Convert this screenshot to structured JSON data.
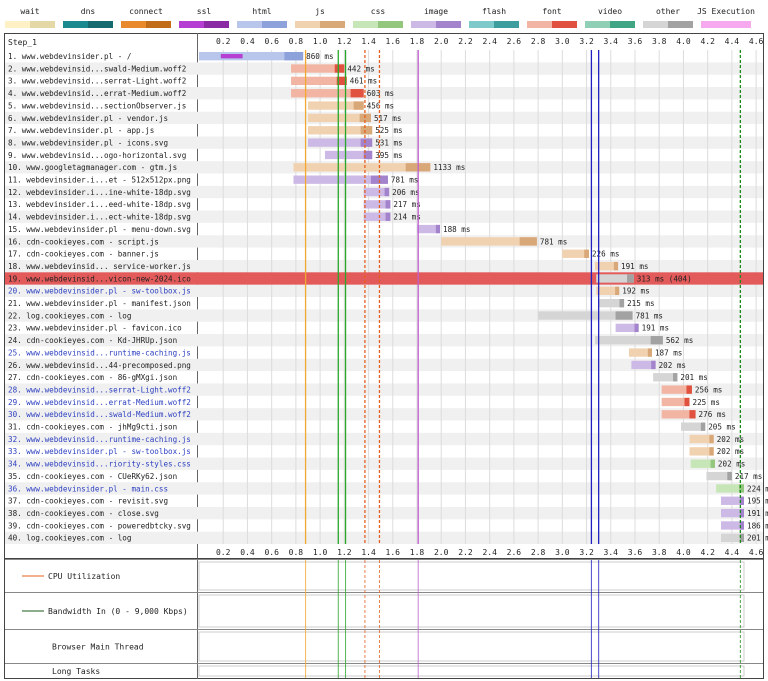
{
  "legend": [
    {
      "label": "wait",
      "color": "#fff1c6",
      "dark": "#e4d9a6"
    },
    {
      "label": "dns",
      "color": "#1b8a8f",
      "dark": "#146a6e"
    },
    {
      "label": "connect",
      "color": "#e88a2b",
      "dark": "#c06c18"
    },
    {
      "label": "ssl",
      "color": "#b43fd2",
      "dark": "#8b2ba3"
    },
    {
      "label": "html",
      "color": "#b8c6ec",
      "dark": "#8da2db"
    },
    {
      "label": "js",
      "color": "#f1d2b0",
      "dark": "#d9a878"
    },
    {
      "label": "css",
      "color": "#c7e6b7",
      "dark": "#93c77d"
    },
    {
      "label": "image",
      "color": "#cdb9e6",
      "dark": "#a283cc"
    },
    {
      "label": "flash",
      "color": "#7ec9c9",
      "dark": "#3e9e9e"
    },
    {
      "label": "font",
      "color": "#f2b5a4",
      "dark": "#e0523f"
    },
    {
      "label": "video",
      "color": "#8ecfb6",
      "dark": "#3fa585"
    },
    {
      "label": "other",
      "color": "#d5d5d5",
      "dark": "#a2a2a2"
    },
    {
      "label": "JS Execution",
      "color": "#f6a9ef",
      "dark": "#f6a9ef"
    }
  ],
  "step_label": "Step_1",
  "chart_data": {
    "type": "waterfall",
    "x_range": [
      0,
      4.5
    ],
    "x_ticks": [
      "0.2",
      "0.4",
      "0.6",
      "0.8",
      "1.0",
      "1.2",
      "1.4",
      "1.6",
      "1.8",
      "2.0",
      "2.2",
      "2.4",
      "2.6",
      "2.8",
      "3.0",
      "3.2",
      "3.4",
      "3.6",
      "3.8",
      "4.0",
      "4.2",
      "4.4",
      "4.6",
      "4."
    ],
    "requests": [
      {
        "label": "1. www.webdevinsider.pl - /",
        "start": 0.0,
        "end": 0.86,
        "type": "html",
        "duration": "860 ms",
        "dns": [
          0.0,
          0.0
        ],
        "connect": [
          0.0,
          0.0
        ],
        "ssl": [
          0.18,
          0.36
        ],
        "flag": ""
      },
      {
        "label": "2. www.webdevinsid...swald-Medium.woff2",
        "start": 0.76,
        "end": 1.2,
        "type": "font",
        "duration": "442 ms",
        "flag": ""
      },
      {
        "label": "3. www.webdevinsid...serrat-Light.woff2",
        "start": 0.76,
        "end": 1.22,
        "type": "font",
        "duration": "461 ms",
        "flag": ""
      },
      {
        "label": "4. www.webdevinsid...errat-Medium.woff2",
        "start": 0.76,
        "end": 1.36,
        "type": "font",
        "duration": "603 ms",
        "flag": ""
      },
      {
        "label": "5. www.webdevinsid...sectionObserver.js",
        "start": 0.9,
        "end": 1.36,
        "type": "js",
        "duration": "456 ms",
        "flag": ""
      },
      {
        "label": "6. www.webdevinsider.pl - vendor.js",
        "start": 0.9,
        "end": 1.42,
        "type": "js",
        "duration": "517 ms",
        "flag": ""
      },
      {
        "label": "7. www.webdevinsider.pl - app.js",
        "start": 0.9,
        "end": 1.43,
        "type": "js",
        "duration": "525 ms",
        "flag": ""
      },
      {
        "label": "8. www.webdevinsider.pl - icons.svg",
        "start": 0.9,
        "end": 1.43,
        "type": "image",
        "duration": "531 ms",
        "flag": ""
      },
      {
        "label": "9. www.webdevinsid...ogo-horizontal.svg",
        "start": 1.04,
        "end": 1.43,
        "type": "image",
        "duration": "395 ms",
        "flag": ""
      },
      {
        "label": "10. www.googletagmanager.com - gtm.js",
        "start": 0.78,
        "end": 1.91,
        "type": "js",
        "duration": "1133 ms",
        "flag": ""
      },
      {
        "label": "11. webdevinsider.i...et - 512x512px.png",
        "start": 0.78,
        "end": 1.56,
        "type": "image",
        "duration": "781 ms",
        "flag": ""
      },
      {
        "label": "12. webdevinsider.i...ine-white-18dp.svg",
        "start": 1.36,
        "end": 1.57,
        "type": "image",
        "duration": "206 ms",
        "flag": ""
      },
      {
        "label": "13. webdevinsider.i...eed-white-18dp.svg",
        "start": 1.36,
        "end": 1.58,
        "type": "image",
        "duration": "217 ms",
        "flag": ""
      },
      {
        "label": "14. webdevinsider.i...ect-white-18dp.svg",
        "start": 1.36,
        "end": 1.58,
        "type": "image",
        "duration": "214 ms",
        "flag": ""
      },
      {
        "label": "15. www.webdevinsider.pl - menu-down.svg",
        "start": 1.8,
        "end": 1.99,
        "type": "image",
        "duration": "188 ms",
        "flag": ""
      },
      {
        "label": "16. cdn-cookieyes.com - script.js",
        "start": 2.0,
        "end": 2.79,
        "type": "js",
        "duration": "781 ms",
        "flag": ""
      },
      {
        "label": "17. cdn-cookieyes.com - banner.js",
        "start": 3.0,
        "end": 3.22,
        "type": "js",
        "duration": "226 ms",
        "flag": ""
      },
      {
        "label": "18. www.webdevinsid... service-worker.js",
        "start": 3.27,
        "end": 3.46,
        "type": "js",
        "duration": "191 ms",
        "flag": ""
      },
      {
        "label": "19. www.webdevinsid...vicon-new-2024.ico",
        "start": 3.28,
        "end": 3.59,
        "type": "other",
        "duration": "313 ms (404)",
        "flag": "error"
      },
      {
        "label": "20. www.webdevinsider.pl - sw-toolbox.js",
        "start": 3.28,
        "end": 3.47,
        "type": "js",
        "duration": "192 ms",
        "flag": "link"
      },
      {
        "label": "21. www.webdevinsider.pl - manifest.json",
        "start": 3.3,
        "end": 3.51,
        "type": "other",
        "duration": "215 ms",
        "flag": ""
      },
      {
        "label": "22. log.cookieyes.com - log",
        "start": 2.8,
        "end": 3.58,
        "type": "other",
        "duration": "781 ms",
        "flag": ""
      },
      {
        "label": "23. www.webdevinsider.pl - favicon.ico",
        "start": 3.44,
        "end": 3.63,
        "type": "image",
        "duration": "191 ms",
        "flag": ""
      },
      {
        "label": "24. cdn-cookieyes.com - Kd-JHRUp.json",
        "start": 3.27,
        "end": 3.83,
        "type": "other",
        "duration": "562 ms",
        "flag": ""
      },
      {
        "label": "25. www.webdevinsid...runtime-caching.js",
        "start": 3.55,
        "end": 3.74,
        "type": "js",
        "duration": "187 ms",
        "flag": "link"
      },
      {
        "label": "26. www.webdevinsid...44-precomposed.png",
        "start": 3.57,
        "end": 3.77,
        "type": "image",
        "duration": "202 ms",
        "flag": ""
      },
      {
        "label": "27. cdn-cookieyes.com - 86-gMXgi.json",
        "start": 3.75,
        "end": 3.95,
        "type": "other",
        "duration": "201 ms",
        "flag": ""
      },
      {
        "label": "28. www.webdevinsid...serrat-Light.woff2",
        "start": 3.82,
        "end": 4.07,
        "type": "font",
        "duration": "256 ms",
        "flag": "link"
      },
      {
        "label": "29. www.webdevinsid...errat-Medium.woff2",
        "start": 3.82,
        "end": 4.05,
        "type": "font",
        "duration": "225 ms",
        "flag": "link"
      },
      {
        "label": "30. www.webdevinsid...swald-Medium.woff2",
        "start": 3.82,
        "end": 4.1,
        "type": "font",
        "duration": "276 ms",
        "flag": "link"
      },
      {
        "label": "31. cdn-cookieyes.com - jhMg9cti.json",
        "start": 3.98,
        "end": 4.18,
        "type": "other",
        "duration": "205 ms",
        "flag": ""
      },
      {
        "label": "32. www.webdevinsid...runtime-caching.js",
        "start": 4.05,
        "end": 4.25,
        "type": "js",
        "duration": "202 ms",
        "flag": "link"
      },
      {
        "label": "33. www.webdevinsider.pl - sw-toolbox.js",
        "start": 4.05,
        "end": 4.25,
        "type": "js",
        "duration": "202 ms",
        "flag": "link"
      },
      {
        "label": "34. www.webdevinsid...riority-styles.css",
        "start": 4.06,
        "end": 4.26,
        "type": "css",
        "duration": "202 ms",
        "flag": "link"
      },
      {
        "label": "35. cdn-cookieyes.com - CUeRKy62.json",
        "start": 4.19,
        "end": 4.4,
        "type": "other",
        "duration": "217 ms",
        "flag": ""
      },
      {
        "label": "36. www.webdevinsider.pl - main.css",
        "start": 4.27,
        "end": 4.5,
        "type": "css",
        "duration": "224 ms",
        "flag": "link"
      },
      {
        "label": "37. cdn-cookieyes.com - revisit.svg",
        "start": 4.31,
        "end": 4.5,
        "type": "image",
        "duration": "195 ms",
        "flag": ""
      },
      {
        "label": "38. cdn-cookieyes.com - close.svg",
        "start": 4.31,
        "end": 4.5,
        "type": "image",
        "duration": "191 ms",
        "flag": ""
      },
      {
        "label": "39. cdn-cookieyes.com - poweredbtcky.svg",
        "start": 4.31,
        "end": 4.5,
        "type": "image",
        "duration": "186 ms",
        "flag": ""
      },
      {
        "label": "40. log.cookieyes.com - log",
        "start": 4.31,
        "end": 4.5,
        "type": "other",
        "duration": "201 ms",
        "flag": ""
      }
    ],
    "markers": [
      {
        "t": 0.88,
        "color": "#f0a830"
      },
      {
        "t": 1.15,
        "color": "#28a828"
      },
      {
        "t": 1.21,
        "color": "#28a828"
      },
      {
        "t": 1.37,
        "color": "#e5601f",
        "dash": true
      },
      {
        "t": 1.49,
        "color": "#e5601f",
        "dash": true
      },
      {
        "t": 1.81,
        "color": "#c060d0"
      },
      {
        "t": 3.24,
        "color": "#2020c0"
      },
      {
        "t": 3.3,
        "color": "#2020c0"
      },
      {
        "t": 4.47,
        "color": "#1a8a1a",
        "dash": true
      }
    ],
    "bottom_panels": [
      {
        "label": "CPU Utilization"
      },
      {
        "label": "Bandwidth In (0 - 9,000 Kbps)"
      },
      {
        "label": "Browser Main Thread"
      },
      {
        "label": "Long Tasks"
      }
    ]
  }
}
